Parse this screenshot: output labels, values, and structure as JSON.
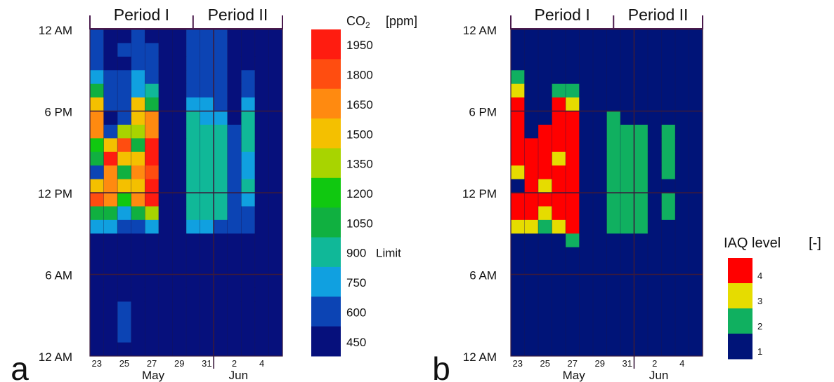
{
  "chart_data": [
    {
      "type": "heatmap",
      "panel_label": "a",
      "periods": [
        "Period I",
        "Period II"
      ],
      "y_tick_labels": [
        "12 AM",
        "6 PM",
        "12 PM",
        "6 AM",
        "12 AM"
      ],
      "x_tick_labels": [
        "23",
        "25",
        "27",
        "29",
        "31",
        "2",
        "4"
      ],
      "month_labels": [
        "May",
        "Jun"
      ],
      "colorbar": {
        "title": "CO",
        "title_sub": "2",
        "unit": "[ppm]",
        "ticks": [
          "1950",
          "1800",
          "1650",
          "1500",
          "1350",
          "1200",
          "1050",
          "900",
          "750",
          "600",
          "450"
        ],
        "limit_label": "Limit",
        "colors": [
          "#ff1c10",
          "#ff4d10",
          "#ff8a10",
          "#f4c000",
          "#a8d400",
          "#10c810",
          "#10b040",
          "#10b898",
          "#10a0e0",
          "#0c44b4",
          "#06107c"
        ]
      },
      "days": [
        "May 23",
        "May 24",
        "May 25",
        "May 26",
        "May 27",
        "May 28",
        "May 29",
        "May 30",
        "May 31",
        "Jun 1",
        "Jun 2",
        "Jun 3",
        "Jun 4",
        "Jun 5"
      ],
      "hours_top_to_bottom": [
        "23",
        "22",
        "21",
        "20",
        "19",
        "18",
        "17",
        "16",
        "15",
        "14",
        "13",
        "12",
        "11",
        "10",
        "9",
        "8",
        "7",
        "6",
        "5",
        "4",
        "3",
        "2",
        "1",
        "0"
      ],
      "values_ppm": [
        [
          600,
          450,
          450,
          540,
          520,
          450,
          450,
          560,
          600,
          530,
          500,
          480,
          450,
          450
        ],
        [
          560,
          470,
          560,
          600,
          560,
          470,
          450,
          560,
          590,
          540,
          520,
          470,
          450,
          450
        ],
        [
          650,
          500,
          520,
          600,
          560,
          470,
          450,
          560,
          600,
          560,
          500,
          500,
          450,
          450
        ],
        [
          760,
          550,
          600,
          700,
          600,
          470,
          450,
          620,
          620,
          590,
          520,
          600,
          450,
          450
        ],
        [
          1070,
          600,
          620,
          740,
          900,
          470,
          450,
          620,
          620,
          590,
          520,
          650,
          450,
          450
        ],
        [
          1480,
          600,
          560,
          1480,
          1050,
          470,
          450,
          780,
          720,
          620,
          520,
          720,
          450,
          450
        ],
        [
          1700,
          520,
          560,
          1500,
          1650,
          470,
          450,
          860,
          780,
          750,
          520,
          850,
          450,
          450
        ],
        [
          1650,
          560,
          1350,
          1400,
          1650,
          450,
          450,
          890,
          870,
          870,
          600,
          880,
          450,
          450
        ],
        [
          1250,
          1500,
          1800,
          1050,
          1950,
          450,
          450,
          900,
          880,
          870,
          600,
          880,
          450,
          450
        ],
        [
          1050,
          1950,
          1500,
          1500,
          1950,
          450,
          450,
          900,
          900,
          880,
          600,
          780,
          450,
          450
        ],
        [
          600,
          1600,
          1000,
          1650,
          1800,
          450,
          450,
          880,
          880,
          860,
          600,
          760,
          450,
          450
        ],
        [
          1500,
          1600,
          1450,
          1550,
          1950,
          450,
          450,
          840,
          840,
          840,
          600,
          900,
          450,
          450
        ],
        [
          1800,
          1620,
          1150,
          1650,
          1950,
          450,
          450,
          900,
          900,
          890,
          600,
          740,
          450,
          450
        ],
        [
          1080,
          1080,
          700,
          1050,
          1400,
          450,
          450,
          880,
          880,
          870,
          600,
          600,
          450,
          450
        ],
        [
          760,
          760,
          600,
          620,
          750,
          450,
          450,
          720,
          720,
          600,
          560,
          600,
          450,
          450
        ],
        [
          460,
          480,
          470,
          480,
          480,
          450,
          450,
          480,
          470,
          470,
          460,
          470,
          450,
          450
        ],
        [
          460,
          460,
          460,
          460,
          460,
          450,
          450,
          460,
          460,
          460,
          460,
          460,
          450,
          450
        ],
        [
          460,
          460,
          460,
          460,
          460,
          450,
          450,
          460,
          460,
          460,
          460,
          460,
          450,
          450
        ],
        [
          460,
          480,
          500,
          480,
          470,
          450,
          450,
          460,
          460,
          460,
          460,
          460,
          450,
          450
        ],
        [
          460,
          460,
          500,
          460,
          460,
          450,
          450,
          460,
          460,
          460,
          460,
          460,
          450,
          450
        ],
        [
          460,
          480,
          560,
          500,
          460,
          450,
          450,
          460,
          460,
          460,
          460,
          460,
          450,
          450
        ],
        [
          460,
          500,
          560,
          500,
          460,
          450,
          450,
          460,
          460,
          460,
          460,
          460,
          450,
          450
        ],
        [
          460,
          480,
          560,
          480,
          460,
          450,
          450,
          460,
          460,
          460,
          460,
          460,
          450,
          450
        ],
        [
          460,
          460,
          500,
          460,
          460,
          450,
          450,
          460,
          460,
          460,
          460,
          460,
          450,
          450
        ]
      ]
    },
    {
      "type": "heatmap",
      "panel_label": "b",
      "periods": [
        "Period I",
        "Period II"
      ],
      "y_tick_labels": [
        "12 AM",
        "6 PM",
        "12 PM",
        "6 AM",
        "12 AM"
      ],
      "x_tick_labels": [
        "23",
        "25",
        "27",
        "29",
        "31",
        "2",
        "4"
      ],
      "month_labels": [
        "May",
        "Jun"
      ],
      "colorbar": {
        "title": "IAQ level",
        "unit": "[-]",
        "ticks": [
          "4",
          "3",
          "2",
          "1"
        ],
        "colors": [
          "#ff0000",
          "#e6dc00",
          "#10b060",
          "#001478"
        ]
      },
      "days": [
        "May 23",
        "May 24",
        "May 25",
        "May 26",
        "May 27",
        "May 28",
        "May 29",
        "May 30",
        "May 31",
        "Jun 1",
        "Jun 2",
        "Jun 3",
        "Jun 4",
        "Jun 5"
      ],
      "hours_top_to_bottom": [
        "23",
        "22",
        "21",
        "20",
        "19",
        "18",
        "17",
        "16",
        "15",
        "14",
        "13",
        "12",
        "11",
        "10",
        "9",
        "8",
        "7",
        "6",
        "5",
        "4",
        "3",
        "2",
        "1",
        "0"
      ],
      "values_level": [
        [
          1,
          1,
          1,
          1,
          1,
          1,
          1,
          1,
          1,
          1,
          1,
          1,
          1,
          1
        ],
        [
          1,
          1,
          1,
          1,
          1,
          1,
          1,
          1,
          1,
          1,
          1,
          1,
          1,
          1
        ],
        [
          1,
          1,
          1,
          1,
          1,
          1,
          1,
          1,
          1,
          1,
          1,
          1,
          1,
          1
        ],
        [
          2,
          1,
          1,
          1,
          1,
          1,
          1,
          1,
          1,
          1,
          1,
          1,
          1,
          1
        ],
        [
          3,
          1,
          1,
          2,
          2,
          1,
          1,
          1,
          1,
          1,
          1,
          1,
          1,
          1
        ],
        [
          4,
          1,
          1,
          4,
          3,
          1,
          1,
          1,
          1,
          1,
          1,
          1,
          1,
          1
        ],
        [
          4,
          1,
          1,
          4,
          4,
          1,
          1,
          2,
          1,
          1,
          1,
          1,
          1,
          1
        ],
        [
          4,
          1,
          4,
          4,
          4,
          1,
          1,
          2,
          2,
          2,
          1,
          2,
          1,
          1
        ],
        [
          4,
          4,
          4,
          4,
          4,
          1,
          1,
          2,
          2,
          2,
          1,
          2,
          1,
          1
        ],
        [
          4,
          4,
          4,
          3,
          4,
          1,
          1,
          2,
          2,
          2,
          1,
          2,
          1,
          1
        ],
        [
          3,
          4,
          4,
          4,
          4,
          1,
          1,
          2,
          2,
          2,
          1,
          2,
          1,
          1
        ],
        [
          1,
          4,
          3,
          4,
          4,
          1,
          1,
          2,
          2,
          2,
          1,
          1,
          1,
          1
        ],
        [
          4,
          4,
          4,
          4,
          4,
          1,
          1,
          2,
          2,
          2,
          1,
          2,
          1,
          1
        ],
        [
          4,
          4,
          3,
          4,
          4,
          1,
          1,
          2,
          2,
          2,
          1,
          2,
          1,
          1
        ],
        [
          3,
          3,
          2,
          3,
          4,
          1,
          1,
          2,
          2,
          2,
          1,
          1,
          1,
          1
        ],
        [
          1,
          1,
          1,
          1,
          2,
          1,
          1,
          1,
          1,
          1,
          1,
          1,
          1,
          1
        ],
        [
          1,
          1,
          1,
          1,
          1,
          1,
          1,
          1,
          1,
          1,
          1,
          1,
          1,
          1
        ],
        [
          1,
          1,
          1,
          1,
          1,
          1,
          1,
          1,
          1,
          1,
          1,
          1,
          1,
          1
        ],
        [
          1,
          1,
          1,
          1,
          1,
          1,
          1,
          1,
          1,
          1,
          1,
          1,
          1,
          1
        ],
        [
          1,
          1,
          1,
          1,
          1,
          1,
          1,
          1,
          1,
          1,
          1,
          1,
          1,
          1
        ],
        [
          1,
          1,
          1,
          1,
          1,
          1,
          1,
          1,
          1,
          1,
          1,
          1,
          1,
          1
        ],
        [
          1,
          1,
          1,
          1,
          1,
          1,
          1,
          1,
          1,
          1,
          1,
          1,
          1,
          1
        ],
        [
          1,
          1,
          1,
          1,
          1,
          1,
          1,
          1,
          1,
          1,
          1,
          1,
          1,
          1
        ],
        [
          1,
          1,
          1,
          1,
          1,
          1,
          1,
          1,
          1,
          1,
          1,
          1,
          1,
          1
        ]
      ]
    }
  ]
}
